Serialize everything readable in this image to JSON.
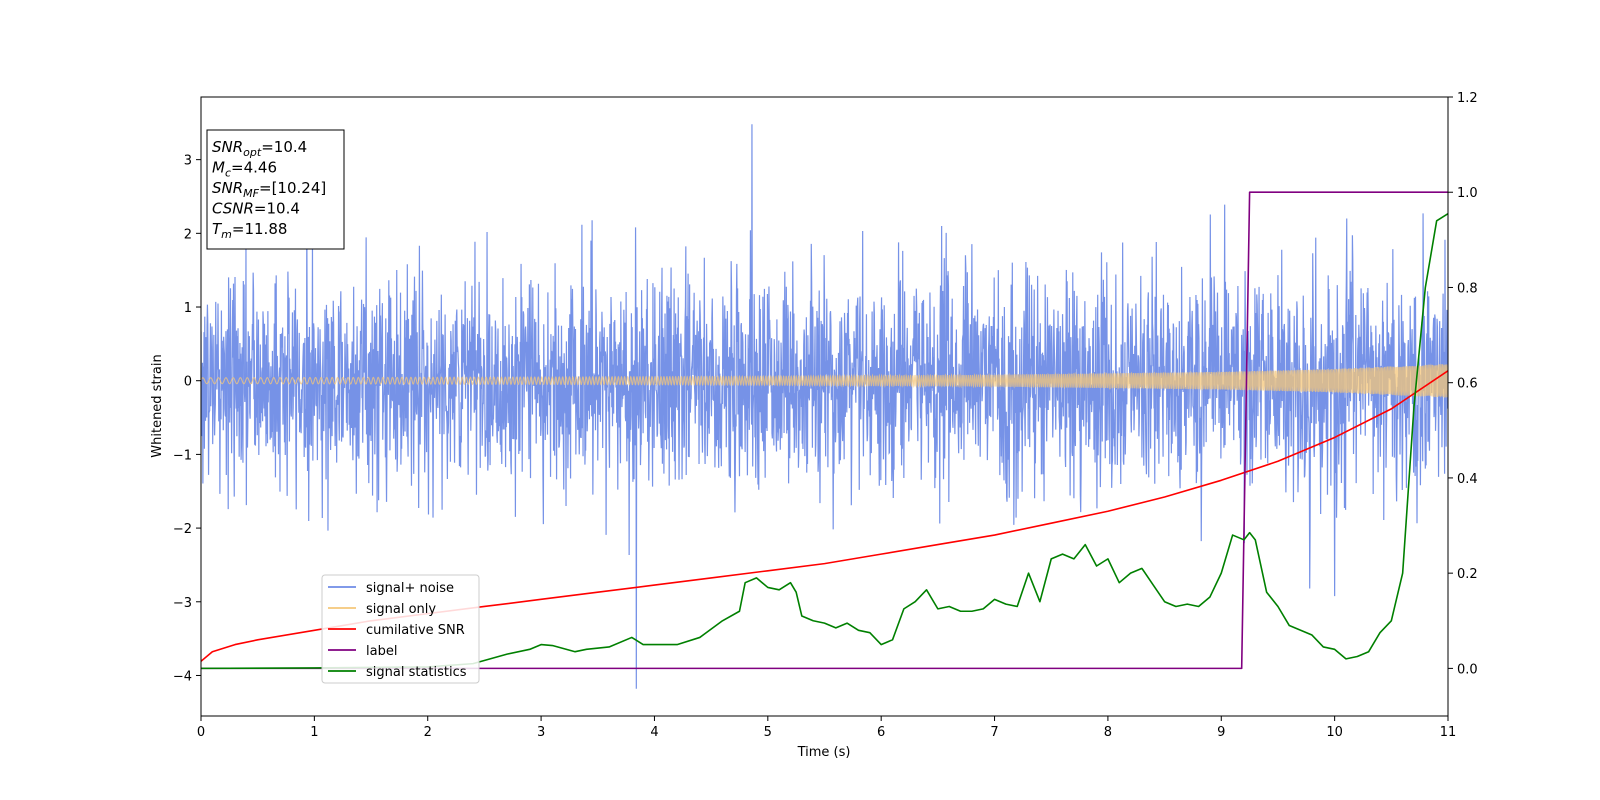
{
  "chart_data": {
    "type": "line",
    "xlabel": "Time (s)",
    "ylabel": "Whitened strain",
    "xlim": [
      0,
      11
    ],
    "ylim": [
      -4.55,
      3.85
    ],
    "y2lim": [
      -0.1,
      1.2
    ],
    "x_ticks": [
      "0",
      "1",
      "2",
      "3",
      "4",
      "5",
      "6",
      "7",
      "8",
      "9",
      "10",
      "11"
    ],
    "y_ticks": [
      "−4",
      "−3",
      "−2",
      "−1",
      "0",
      "1",
      "2",
      "3"
    ],
    "y_tick_values": [
      -4,
      -3,
      -2,
      -1,
      0,
      1,
      2,
      3
    ],
    "y2_ticks": [
      "0.0",
      "0.2",
      "0.4",
      "0.6",
      "0.8",
      "1.0",
      "1.2"
    ],
    "y2_tick_values": [
      0.0,
      0.2,
      0.4,
      0.6,
      0.8,
      1.0,
      1.2
    ],
    "annotation": {
      "lines": [
        {
          "base": "SNR",
          "sub": "opt",
          "value": "=10.4"
        },
        {
          "base": "M",
          "sub": "c",
          "value": "=4.46"
        },
        {
          "base": "SNR",
          "sub": "MF",
          "value": "=[10.24]"
        },
        {
          "base": "CSNR",
          "sub": "",
          "value": "=10.4"
        },
        {
          "base": "T",
          "sub": "m",
          "value": "=11.88"
        }
      ]
    },
    "legend_position": "lower-left",
    "legend": [
      {
        "label": "signal+ noise",
        "color": "#6f8ce6"
      },
      {
        "label": "signal only",
        "color": "#f5c77a"
      },
      {
        "label": "cumilative SNR",
        "color": "#ff0000"
      },
      {
        "label": "label",
        "color": "#800080"
      },
      {
        "label": "signal statistics",
        "color": "#008000"
      }
    ],
    "series": [
      {
        "name": "signal+ noise",
        "axis": "left",
        "color": "#6f8ce6",
        "kind": "noise",
        "sample_rate_hz": 300,
        "amplitude_p99": 2.8,
        "max": 3.48,
        "min": -4.18
      },
      {
        "name": "signal only",
        "axis": "left",
        "color": "#f5c77a",
        "kind": "chirp",
        "amplitude_x": [
          0,
          3,
          5,
          7,
          9,
          10,
          11
        ],
        "amplitude_y": [
          0.04,
          0.05,
          0.06,
          0.08,
          0.12,
          0.16,
          0.23
        ]
      },
      {
        "name": "cumilative SNR",
        "axis": "right",
        "color": "#ff0000",
        "x": [
          0,
          0.1,
          0.3,
          0.5,
          1,
          1.5,
          2,
          2.5,
          3,
          3.5,
          4,
          4.5,
          5,
          5.5,
          6,
          6.5,
          7,
          7.5,
          8,
          8.5,
          9,
          9.5,
          10,
          10.5,
          11
        ],
        "y": [
          0.015,
          0.035,
          0.05,
          0.06,
          0.08,
          0.1,
          0.115,
          0.13,
          0.145,
          0.16,
          0.175,
          0.19,
          0.205,
          0.22,
          0.24,
          0.26,
          0.28,
          0.305,
          0.33,
          0.36,
          0.395,
          0.435,
          0.485,
          0.545,
          0.625
        ]
      },
      {
        "name": "label",
        "axis": "right",
        "color": "#800080",
        "x": [
          0,
          9.18,
          9.25,
          11
        ],
        "y": [
          0,
          0,
          1,
          1
        ]
      },
      {
        "name": "signal statistics",
        "axis": "right",
        "color": "#008000",
        "x": [
          0,
          1,
          2,
          2.4,
          2.7,
          2.9,
          3.0,
          3.1,
          3.3,
          3.4,
          3.6,
          3.8,
          3.9,
          4.0,
          4.2,
          4.4,
          4.6,
          4.75,
          4.8,
          4.9,
          5.0,
          5.1,
          5.2,
          5.25,
          5.3,
          5.4,
          5.5,
          5.6,
          5.7,
          5.8,
          5.9,
          6.0,
          6.1,
          6.2,
          6.3,
          6.4,
          6.5,
          6.6,
          6.7,
          6.8,
          6.9,
          7.0,
          7.1,
          7.2,
          7.3,
          7.4,
          7.5,
          7.6,
          7.7,
          7.8,
          7.9,
          8.0,
          8.1,
          8.2,
          8.3,
          8.4,
          8.5,
          8.6,
          8.7,
          8.8,
          8.9,
          9.0,
          9.1,
          9.2,
          9.25,
          9.3,
          9.4,
          9.5,
          9.6,
          9.7,
          9.8,
          9.9,
          10.0,
          10.1,
          10.2,
          10.3,
          10.4,
          10.5,
          10.6,
          10.7,
          10.8,
          10.9,
          11.0
        ],
        "y": [
          0,
          0.001,
          0.003,
          0.01,
          0.03,
          0.04,
          0.05,
          0.048,
          0.035,
          0.04,
          0.045,
          0.065,
          0.05,
          0.05,
          0.05,
          0.065,
          0.1,
          0.12,
          0.18,
          0.19,
          0.17,
          0.165,
          0.18,
          0.16,
          0.11,
          0.1,
          0.095,
          0.085,
          0.095,
          0.08,
          0.075,
          0.05,
          0.06,
          0.125,
          0.14,
          0.165,
          0.125,
          0.13,
          0.12,
          0.12,
          0.125,
          0.145,
          0.135,
          0.13,
          0.2,
          0.14,
          0.23,
          0.24,
          0.23,
          0.26,
          0.215,
          0.23,
          0.18,
          0.2,
          0.21,
          0.175,
          0.14,
          0.13,
          0.135,
          0.13,
          0.15,
          0.2,
          0.28,
          0.27,
          0.285,
          0.27,
          0.16,
          0.13,
          0.09,
          0.08,
          0.07,
          0.045,
          0.04,
          0.02,
          0.025,
          0.035,
          0.075,
          0.1,
          0.2,
          0.55,
          0.8,
          0.94,
          0.955
        ]
      }
    ]
  }
}
